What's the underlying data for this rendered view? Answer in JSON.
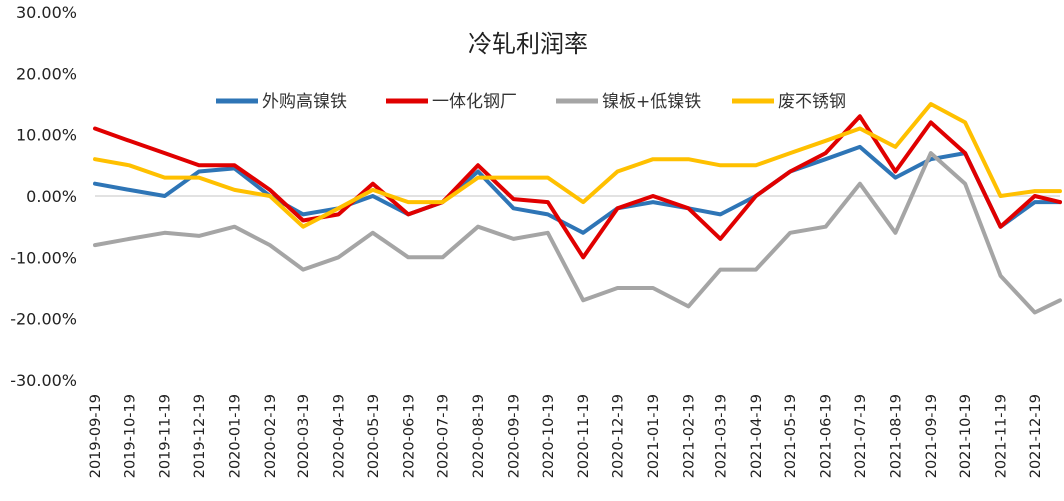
{
  "chart_data": {
    "type": "line",
    "title": "冷轧利润率",
    "xlabel": "",
    "ylabel": "",
    "ylim": [
      -0.3,
      0.3
    ],
    "yticks": [
      "30.00%",
      "20.00%",
      "10.00%",
      "0.00%",
      "-10.00%",
      "-20.00%",
      "-30.00%"
    ],
    "ytick_values": [
      0.3,
      0.2,
      0.1,
      0.0,
      -0.1,
      -0.2,
      -0.3
    ],
    "x_ticks": [
      "2019-09-19",
      "2019-10-19",
      "2019-11-19",
      "2019-12-19",
      "2020-01-19",
      "2020-02-19",
      "2020-03-19",
      "2020-04-19",
      "2020-05-19",
      "2020-06-19",
      "2020-07-19",
      "2020-08-19",
      "2020-09-19",
      "2020-10-19",
      "2020-11-19",
      "2020-12-19",
      "2021-01-19",
      "2021-02-19",
      "2021-03-19",
      "2021-04-19",
      "2021-05-19",
      "2021-06-19",
      "2021-07-19",
      "2021-08-19",
      "2021-09-19",
      "2021-10-19",
      "2021-11-19",
      "2021-12-19"
    ],
    "x": [
      "2019-09-19",
      "2019-10-19",
      "2019-11-19",
      "2019-12-19",
      "2020-01-19",
      "2020-02-19",
      "2020-03-19",
      "2020-04-19",
      "2020-05-19",
      "2020-06-19",
      "2020-07-19",
      "2020-08-19",
      "2020-09-19",
      "2020-10-19",
      "2020-11-19",
      "2020-12-19",
      "2021-01-19",
      "2021-02-19",
      "2021-03-19",
      "2021-04-19",
      "2021-05-19",
      "2021-06-19",
      "2021-07-19",
      "2021-08-19",
      "2021-09-19",
      "2021-10-19",
      "2021-11-19",
      "2021-12-19",
      "2022-01-10"
    ],
    "legend": {
      "position": "top-center"
    },
    "grid": false,
    "zero_line": true,
    "series": [
      {
        "name": "外购高镍铁",
        "color": "#2e75b6",
        "values": [
          0.02,
          0.01,
          0.0,
          0.04,
          0.045,
          0.0,
          -0.03,
          -0.02,
          0.0,
          -0.03,
          -0.01,
          0.04,
          -0.02,
          -0.03,
          -0.06,
          -0.02,
          -0.01,
          -0.02,
          -0.03,
          0.0,
          0.04,
          0.06,
          0.08,
          0.03,
          0.06,
          0.07,
          -0.05,
          -0.01,
          -0.01
        ]
      },
      {
        "name": "一体化钢厂",
        "color": "#e00000",
        "values": [
          0.11,
          0.09,
          0.07,
          0.05,
          0.05,
          0.01,
          -0.04,
          -0.03,
          0.02,
          -0.03,
          -0.01,
          0.05,
          -0.005,
          -0.01,
          -0.1,
          -0.02,
          0.0,
          -0.02,
          -0.07,
          0.0,
          0.04,
          0.07,
          0.13,
          0.04,
          0.12,
          0.07,
          -0.05,
          0.0,
          -0.01
        ]
      },
      {
        "name": "镍板+低镍铁",
        "color": "#a5a5a5",
        "values": [
          -0.08,
          -0.07,
          -0.06,
          -0.065,
          -0.05,
          -0.08,
          -0.12,
          -0.1,
          -0.06,
          -0.1,
          -0.1,
          -0.05,
          -0.07,
          -0.06,
          -0.17,
          -0.15,
          -0.15,
          -0.18,
          -0.12,
          -0.12,
          -0.06,
          -0.05,
          0.02,
          -0.06,
          0.07,
          0.02,
          -0.13,
          -0.19,
          -0.17
        ]
      },
      {
        "name": "废不锈钢",
        "color": "#ffc000",
        "values": [
          0.06,
          0.05,
          0.03,
          0.03,
          0.01,
          0.0,
          -0.05,
          -0.02,
          0.01,
          -0.01,
          -0.01,
          0.03,
          0.03,
          0.03,
          -0.01,
          0.04,
          0.06,
          0.06,
          0.05,
          0.05,
          0.07,
          0.09,
          0.11,
          0.08,
          0.15,
          0.12,
          0.0,
          0.008,
          0.008
        ]
      }
    ]
  }
}
